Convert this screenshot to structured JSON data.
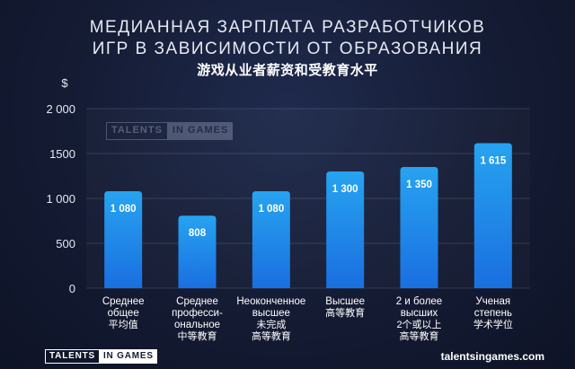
{
  "title": {
    "line1": "МЕДИАННАЯ ЗАРПЛАТА РАЗРАБОТЧИКОВ",
    "line2": "ИГР В ЗАВИСИМОСТИ ОТ ОБРАЗОВАНИЯ",
    "cn": "游戏从业者薪资和受教育水平"
  },
  "chart_data": {
    "type": "bar",
    "y_unit": "$",
    "ylim": [
      0,
      2000
    ],
    "yticks": [
      0,
      500,
      1000,
      1500,
      2000
    ],
    "ytick_labels": [
      "0",
      "500",
      "1 000",
      "1500",
      "2 000"
    ],
    "grid": true,
    "categories": [
      {
        "ru": [
          "Среднее",
          "общее"
        ],
        "cn": [
          "平均值"
        ]
      },
      {
        "ru": [
          "Среднее",
          "професси-",
          "ональное"
        ],
        "cn": [
          "中等教育"
        ]
      },
      {
        "ru": [
          "Неоконченное",
          "высшее"
        ],
        "cn": [
          "未完成",
          "高等教育"
        ]
      },
      {
        "ru": [
          "Высшее"
        ],
        "cn": [
          "高等教育"
        ]
      },
      {
        "ru": [
          "2 и более",
          "высших"
        ],
        "cn": [
          "2个或以上",
          "高等教育"
        ]
      },
      {
        "ru": [
          "Ученая",
          "степень"
        ],
        "cn": [
          "学术学位"
        ]
      }
    ],
    "values": [
      1080,
      808,
      1080,
      1300,
      1350,
      1615
    ],
    "value_labels": [
      "1 080",
      "808",
      "1 080",
      "1 300",
      "1 350",
      "1 615"
    ],
    "bar_color_top": "#27a3f0",
    "bar_color_bottom": "#1a6fe0"
  },
  "watermark": {
    "left": "TALENTS",
    "right": "IN GAMES"
  },
  "footer": {
    "logo_left": "TALENTS",
    "logo_right": "IN GAMES",
    "site": "talentsingames.com"
  }
}
